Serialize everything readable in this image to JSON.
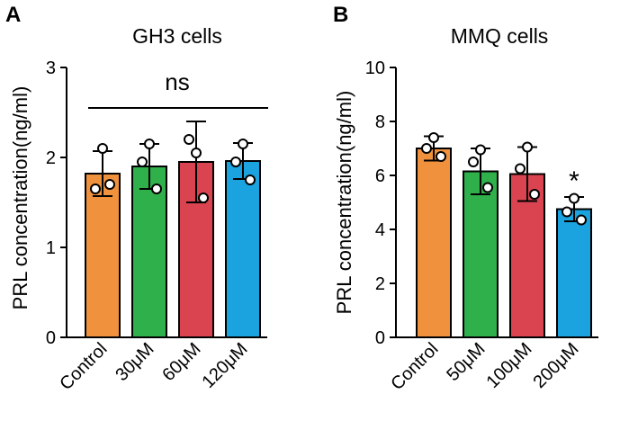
{
  "chart_data": [
    {
      "type": "bar",
      "panel": "A",
      "title": "GH3 cells",
      "ylabel": "PRL concentration(ng/ml)",
      "xlabel": "",
      "categories": [
        "Control",
        "30μM",
        "60μM",
        "120μM"
      ],
      "colors": [
        "#F0923D",
        "#30B04A",
        "#D94450",
        "#1AA3DE"
      ],
      "values": [
        1.82,
        1.9,
        1.95,
        1.96
      ],
      "errors": [
        0.25,
        0.25,
        0.45,
        0.2
      ],
      "points": [
        [
          2.1,
          1.65,
          1.7
        ],
        [
          2.15,
          1.95,
          1.65
        ],
        [
          2.05,
          2.2,
          1.55
        ],
        [
          2.15,
          1.95,
          1.75
        ]
      ],
      "ylim": [
        0,
        3
      ],
      "yticks": [
        0,
        1,
        2,
        3
      ],
      "annotation": "ns",
      "significance": [
        "",
        "",
        "",
        ""
      ]
    },
    {
      "type": "bar",
      "panel": "B",
      "title": "MMQ cells",
      "ylabel": "PRL concentration(ng/ml)",
      "xlabel": "",
      "categories": [
        "Control",
        "50μM",
        "100μM",
        "200μM"
      ],
      "colors": [
        "#F0923D",
        "#30B04A",
        "#D94450",
        "#1AA3DE"
      ],
      "values": [
        7.0,
        6.15,
        6.05,
        4.75
      ],
      "errors": [
        0.45,
        0.85,
        1.0,
        0.45
      ],
      "points": [
        [
          7.4,
          7.0,
          6.7
        ],
        [
          6.95,
          6.5,
          5.55
        ],
        [
          7.05,
          6.25,
          5.3
        ],
        [
          5.15,
          4.65,
          4.35
        ]
      ],
      "ylim": [
        0,
        10
      ],
      "yticks": [
        0,
        2,
        4,
        6,
        8,
        10
      ],
      "annotation": "",
      "significance": [
        "",
        "",
        "",
        "*"
      ]
    }
  ]
}
